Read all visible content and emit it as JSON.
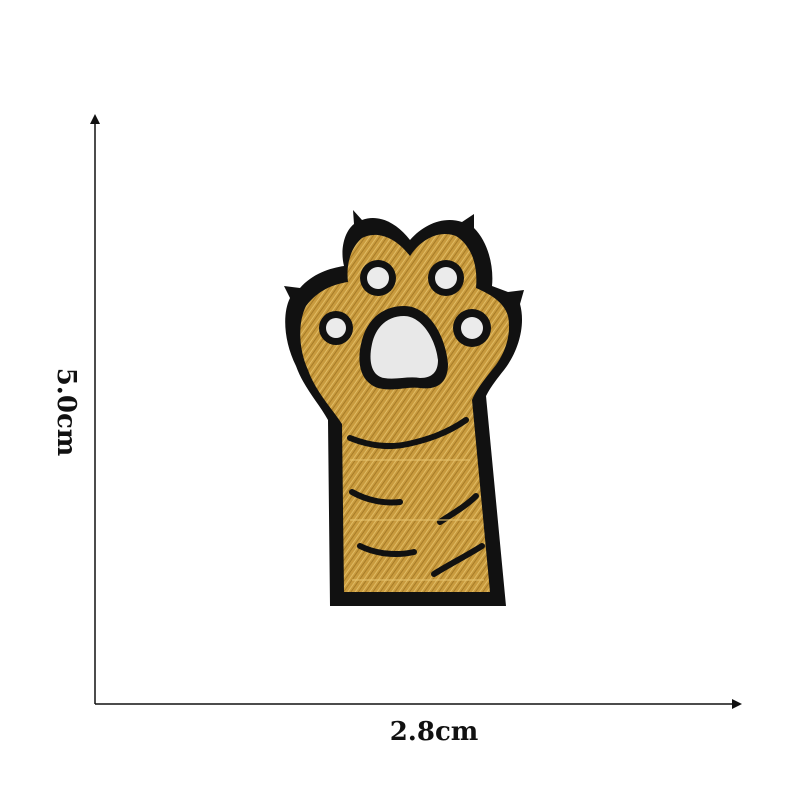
{
  "dimensions": {
    "width_label": "2.8cm",
    "height_label": "5.0cm"
  },
  "image": {
    "subject": "cat-paw-embroidered-patch"
  },
  "colors": {
    "background": "#ffffff",
    "fur": "#c79a3c",
    "fur_highlight": "#ddb75e",
    "outline": "#111111",
    "pad": "#e9e9e9",
    "axis": "#111111"
  }
}
